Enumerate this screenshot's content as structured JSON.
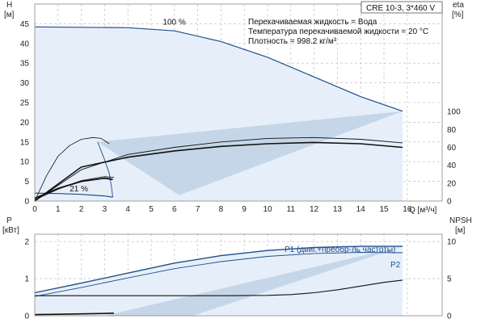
{
  "chart_data": [
    {
      "type": "line",
      "title": "CRE 10-3, 3*460 V",
      "info_lines": [
        "Перекачиваемая жидкость = Вода",
        "Температура перекачиваемой жидкости = 20 °C",
        "Плотность = 998.2 кг/м³"
      ],
      "xlabel": "Q [м³/ч]",
      "ylabel_left": "H\n[м]",
      "ylabel_right": "eta\n[%]",
      "xlim": [
        0,
        17.5
      ],
      "ylim_left": [
        0,
        50
      ],
      "ylim_right": [
        0,
        220
      ],
      "x_ticks": [
        0,
        1,
        2,
        3,
        4,
        5,
        6,
        7,
        8,
        9,
        10,
        11,
        12,
        13,
        14,
        15,
        16
      ],
      "y_ticks_left": [
        0,
        5,
        10,
        15,
        20,
        25,
        30,
        35,
        40,
        45
      ],
      "y_ticks_right": [
        0,
        20,
        40,
        60,
        80,
        100
      ],
      "grid": true,
      "annotations": [
        {
          "text": "100 %",
          "x": 5.5,
          "y": 44.2
        },
        {
          "text": "21 %",
          "x": 1.5,
          "y": 1.8
        }
      ],
      "series": [
        {
          "x": [
            0,
            2,
            4,
            6,
            8,
            10,
            12,
            14,
            15.8
          ],
          "y": [
            44.2,
            44.1,
            44.0,
            43.2,
            40.5,
            36.5,
            31.5,
            26.5,
            22.8
          ]
        },
        {
          "x": [
            0,
            1,
            2,
            3,
            3.35
          ],
          "y": [
            2.0,
            1.9,
            1.7,
            1.3,
            1.0
          ]
        },
        {
          "x": [
            0,
            1,
            2,
            3,
            3.35
          ],
          "y": [
            0.7,
            3.2,
            5.0,
            5.8,
            5.5
          ]
        },
        {
          "x": [
            0,
            1,
            2,
            3,
            3.4
          ],
          "y": [
            0.3,
            3.0,
            5.2,
            6.2,
            6.0
          ]
        },
        {
          "x": [
            0,
            2,
            4,
            6,
            8,
            10,
            12,
            14,
            15.8
          ],
          "y_right": [
            0,
            35,
            52,
            60,
            66,
            70,
            71,
            69,
            65
          ]
        },
        {
          "x": [
            0,
            2,
            4,
            6,
            8,
            10,
            12,
            14,
            15.8
          ],
          "y_right": [
            0,
            38,
            49,
            56,
            61,
            64,
            65.5,
            64,
            60
          ]
        },
        {
          "x": [
            0,
            0.5,
            1,
            1.5,
            2,
            2.5,
            2.85,
            3.2
          ],
          "y_right": [
            0,
            28,
            50,
            62,
            69,
            71,
            70,
            64
          ]
        }
      ],
      "envelope": {
        "upper": {
          "x": [
            0,
            2,
            4,
            6,
            8,
            10,
            12,
            14,
            15.8
          ],
          "y": [
            44.2,
            44.1,
            44.0,
            43.2,
            40.5,
            36.5,
            31.5,
            26.5,
            22.8
          ]
        },
        "lower": {
          "x": [
            0,
            1,
            2,
            3,
            3.35
          ],
          "y": [
            2.0,
            1.9,
            1.7,
            1.3,
            1.0
          ]
        },
        "min_speed_end": {
          "x": [
            3.35,
            3.3,
            3.2,
            3.0,
            2.7
          ],
          "y": [
            1.0,
            3.5,
            7.0,
            10.5,
            15.0
          ]
        },
        "wedge": {
          "x": [
            2.7,
            6.2,
            15.8
          ],
          "y": [
            15.0,
            1.5,
            22.8
          ]
        }
      }
    },
    {
      "type": "line",
      "ylabel_left": "P\n[кВт]",
      "ylabel_right": "NPSH\n[м]",
      "xlim": [
        0,
        17.5
      ],
      "ylim_left": [
        0,
        2.2
      ],
      "ylim_right": [
        0,
        11
      ],
      "y_ticks_left": [
        0,
        1,
        2
      ],
      "y_ticks_right": [
        0,
        5,
        10
      ],
      "grid": true,
      "series": [
        {
          "name": "P1 (двиг.+преобр-ль частоты)",
          "x": [
            0,
            2,
            4,
            6,
            8,
            10,
            12,
            14,
            15.8
          ],
          "y": [
            0.62,
            0.88,
            1.15,
            1.42,
            1.62,
            1.76,
            1.84,
            1.87,
            1.87
          ]
        },
        {
          "name": "P2",
          "x": [
            0,
            2,
            4,
            6,
            8,
            10,
            12,
            14,
            15.8
          ],
          "y": [
            0.52,
            0.76,
            1.02,
            1.27,
            1.46,
            1.6,
            1.68,
            1.71,
            1.7
          ]
        },
        {
          "x": [
            0,
            1,
            2,
            3,
            3.4
          ],
          "y": [
            0.03,
            0.04,
            0.05,
            0.06,
            0.07
          ]
        },
        {
          "x": [
            0,
            2,
            4,
            6,
            8,
            10,
            11,
            12,
            13,
            14,
            15,
            15.8
          ],
          "y_right": [
            2.7,
            2.7,
            2.7,
            2.7,
            2.7,
            2.75,
            2.85,
            3.1,
            3.5,
            4.0,
            4.5,
            4.8
          ]
        }
      ]
    }
  ]
}
